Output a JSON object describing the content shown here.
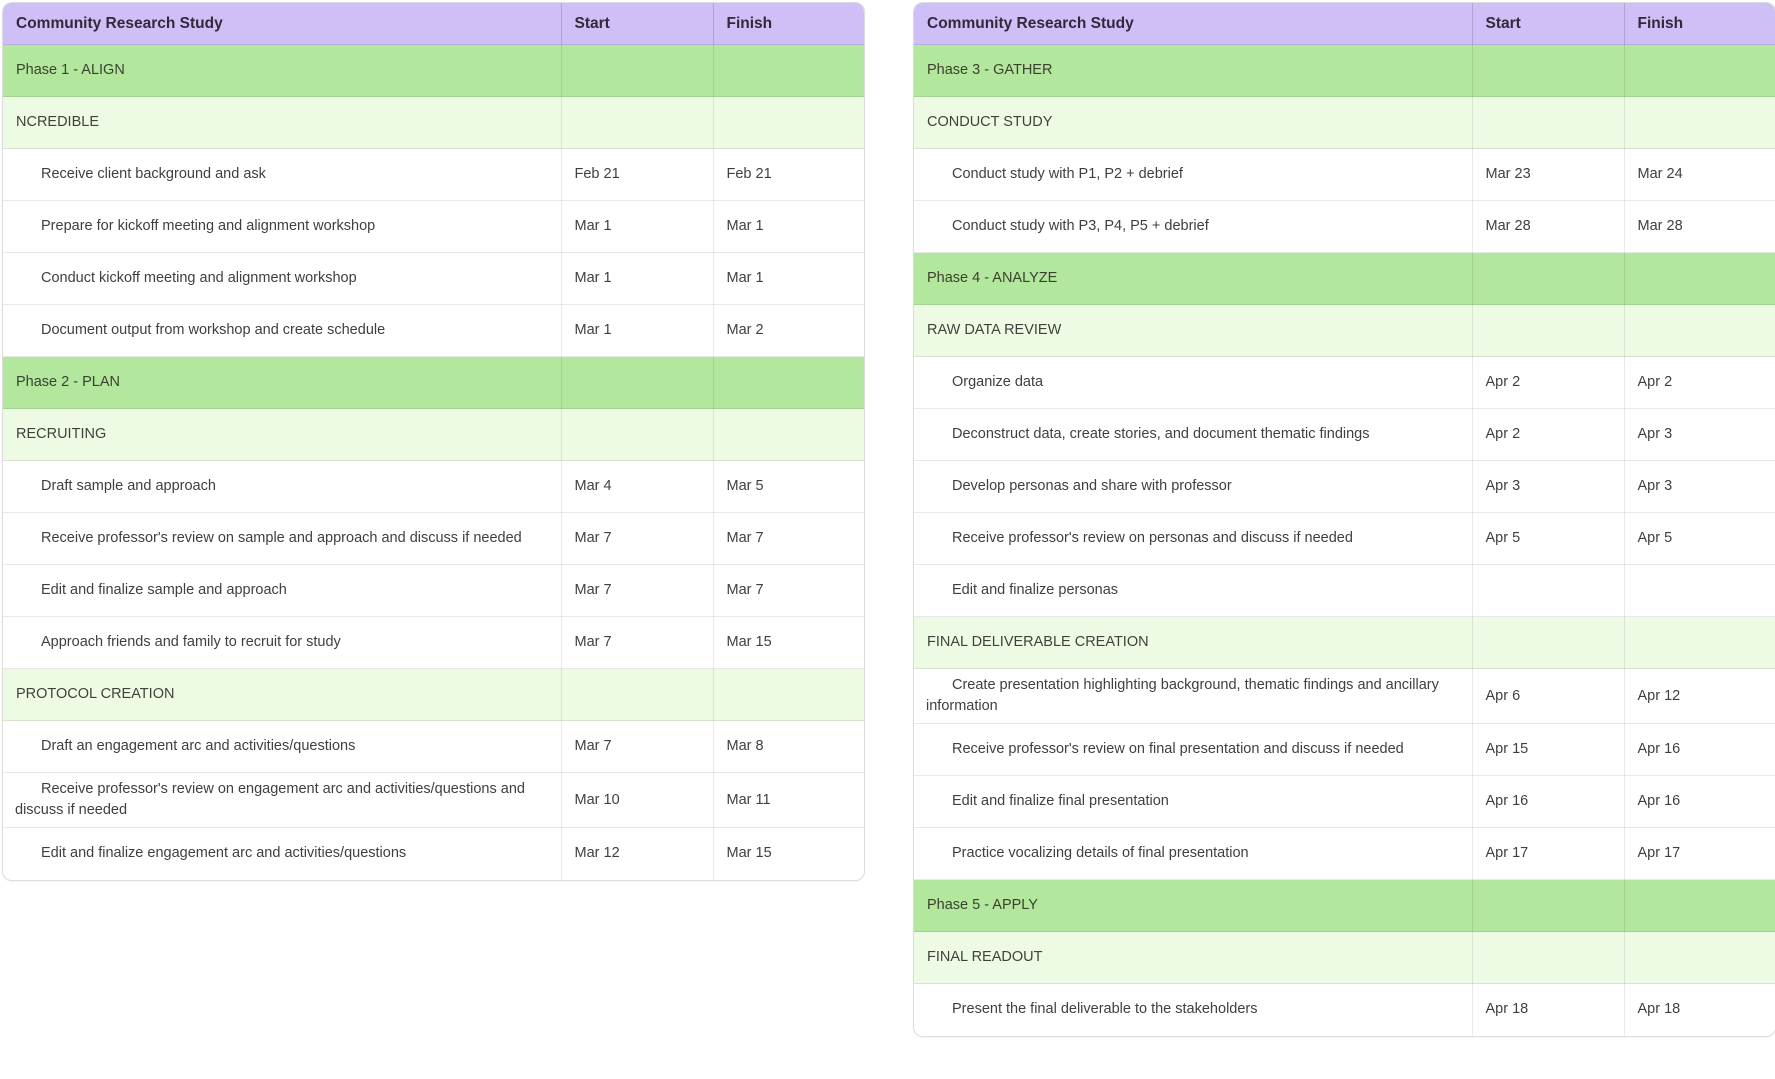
{
  "colors": {
    "header_bg": "#cec0f7",
    "phase_bg": "#b3e79e",
    "section_bg": "#edfae4",
    "task_bg": "#ffffff",
    "border": "#dcdcdc",
    "text": "#3f3f3f",
    "header_text": "#2f2a3a"
  },
  "tables": [
    {
      "columns": [
        "Community Research Study",
        "Start",
        "Finish"
      ],
      "rows": [
        {
          "type": "phase",
          "name": "Phase 1 - ALIGN",
          "start": "",
          "finish": ""
        },
        {
          "type": "section",
          "name": "NCREDIBLE",
          "start": "",
          "finish": ""
        },
        {
          "type": "task",
          "name": "Receive client background and ask",
          "start": "Feb 21",
          "finish": "Feb 21"
        },
        {
          "type": "task",
          "name": "Prepare for kickoff meeting and alignment workshop",
          "start": "Mar 1",
          "finish": "Mar 1"
        },
        {
          "type": "task",
          "name": "Conduct kickoff meeting and alignment workshop",
          "start": "Mar 1",
          "finish": "Mar 1"
        },
        {
          "type": "task",
          "name": "Document output from workshop and create schedule",
          "start": "Mar 1",
          "finish": "Mar 2"
        },
        {
          "type": "phase",
          "name": "Phase 2 - PLAN",
          "start": "",
          "finish": ""
        },
        {
          "type": "section",
          "name": "RECRUITING",
          "start": "",
          "finish": ""
        },
        {
          "type": "task",
          "name": "Draft sample and approach",
          "start": "Mar 4",
          "finish": "Mar 5"
        },
        {
          "type": "task",
          "name": "Receive professor's review on sample and approach and discuss if needed",
          "start": "Mar 7",
          "finish": "Mar 7"
        },
        {
          "type": "task",
          "name": "Edit and finalize sample and approach",
          "start": "Mar 7",
          "finish": "Mar 7"
        },
        {
          "type": "task",
          "name": "Approach friends and family to recruit for study",
          "start": "Mar 7",
          "finish": "Mar 15"
        },
        {
          "type": "section",
          "name": "PROTOCOL CREATION",
          "start": "",
          "finish": ""
        },
        {
          "type": "task",
          "name": "Draft an engagement arc and activities/questions",
          "start": "Mar 7",
          "finish": "Mar 8"
        },
        {
          "type": "task",
          "name": "Receive professor's review on engagement arc and activities/questions and discuss if needed",
          "start": "Mar 10",
          "finish": "Mar 11"
        },
        {
          "type": "task",
          "name": "Edit and finalize engagement arc and activities/questions",
          "start": "Mar 12",
          "finish": "Mar 15"
        }
      ]
    },
    {
      "columns": [
        "Community Research Study",
        "Start",
        "Finish"
      ],
      "rows": [
        {
          "type": "phase",
          "name": "Phase 3 - GATHER",
          "start": "",
          "finish": ""
        },
        {
          "type": "section",
          "name": "CONDUCT STUDY",
          "start": "",
          "finish": ""
        },
        {
          "type": "task",
          "name": "Conduct study with P1, P2 + debrief",
          "start": "Mar 23",
          "finish": "Mar 24"
        },
        {
          "type": "task",
          "name": "Conduct study with P3, P4, P5 + debrief",
          "start": "Mar 28",
          "finish": "Mar 28"
        },
        {
          "type": "phase",
          "name": "Phase 4 - ANALYZE",
          "start": "",
          "finish": ""
        },
        {
          "type": "section",
          "name": "RAW DATA REVIEW",
          "start": "",
          "finish": ""
        },
        {
          "type": "task",
          "name": "Organize data",
          "start": "Apr 2",
          "finish": "Apr 2"
        },
        {
          "type": "task",
          "name": "Deconstruct data, create stories, and document thematic findings",
          "start": "Apr 2",
          "finish": "Apr 3"
        },
        {
          "type": "task",
          "name": "Develop personas and share with professor",
          "start": "Apr 3",
          "finish": "Apr 3"
        },
        {
          "type": "task",
          "name": "Receive professor's review on personas and discuss if needed",
          "start": "Apr 5",
          "finish": "Apr 5"
        },
        {
          "type": "task",
          "name": "Edit and finalize personas",
          "start": "",
          "finish": ""
        },
        {
          "type": "section",
          "name": "FINAL DELIVERABLE CREATION",
          "start": "",
          "finish": ""
        },
        {
          "type": "task",
          "name": "Create presentation highlighting background, thematic findings and ancillary information",
          "start": "Apr 6",
          "finish": "Apr 12"
        },
        {
          "type": "task",
          "name": "Receive professor's review on final presentation and discuss if needed",
          "start": "Apr 15",
          "finish": "Apr 16"
        },
        {
          "type": "task",
          "name": "Edit and finalize final presentation",
          "start": "Apr 16",
          "finish": "Apr 16"
        },
        {
          "type": "task",
          "name": "Practice vocalizing details of final presentation",
          "start": "Apr 17",
          "finish": "Apr 17"
        },
        {
          "type": "phase",
          "name": "Phase 5 - APPLY",
          "start": "",
          "finish": ""
        },
        {
          "type": "section",
          "name": "FINAL READOUT",
          "start": "",
          "finish": ""
        },
        {
          "type": "task",
          "name": "Present the final deliverable to the stakeholders",
          "start": "Apr 18",
          "finish": "Apr 18"
        }
      ]
    }
  ]
}
